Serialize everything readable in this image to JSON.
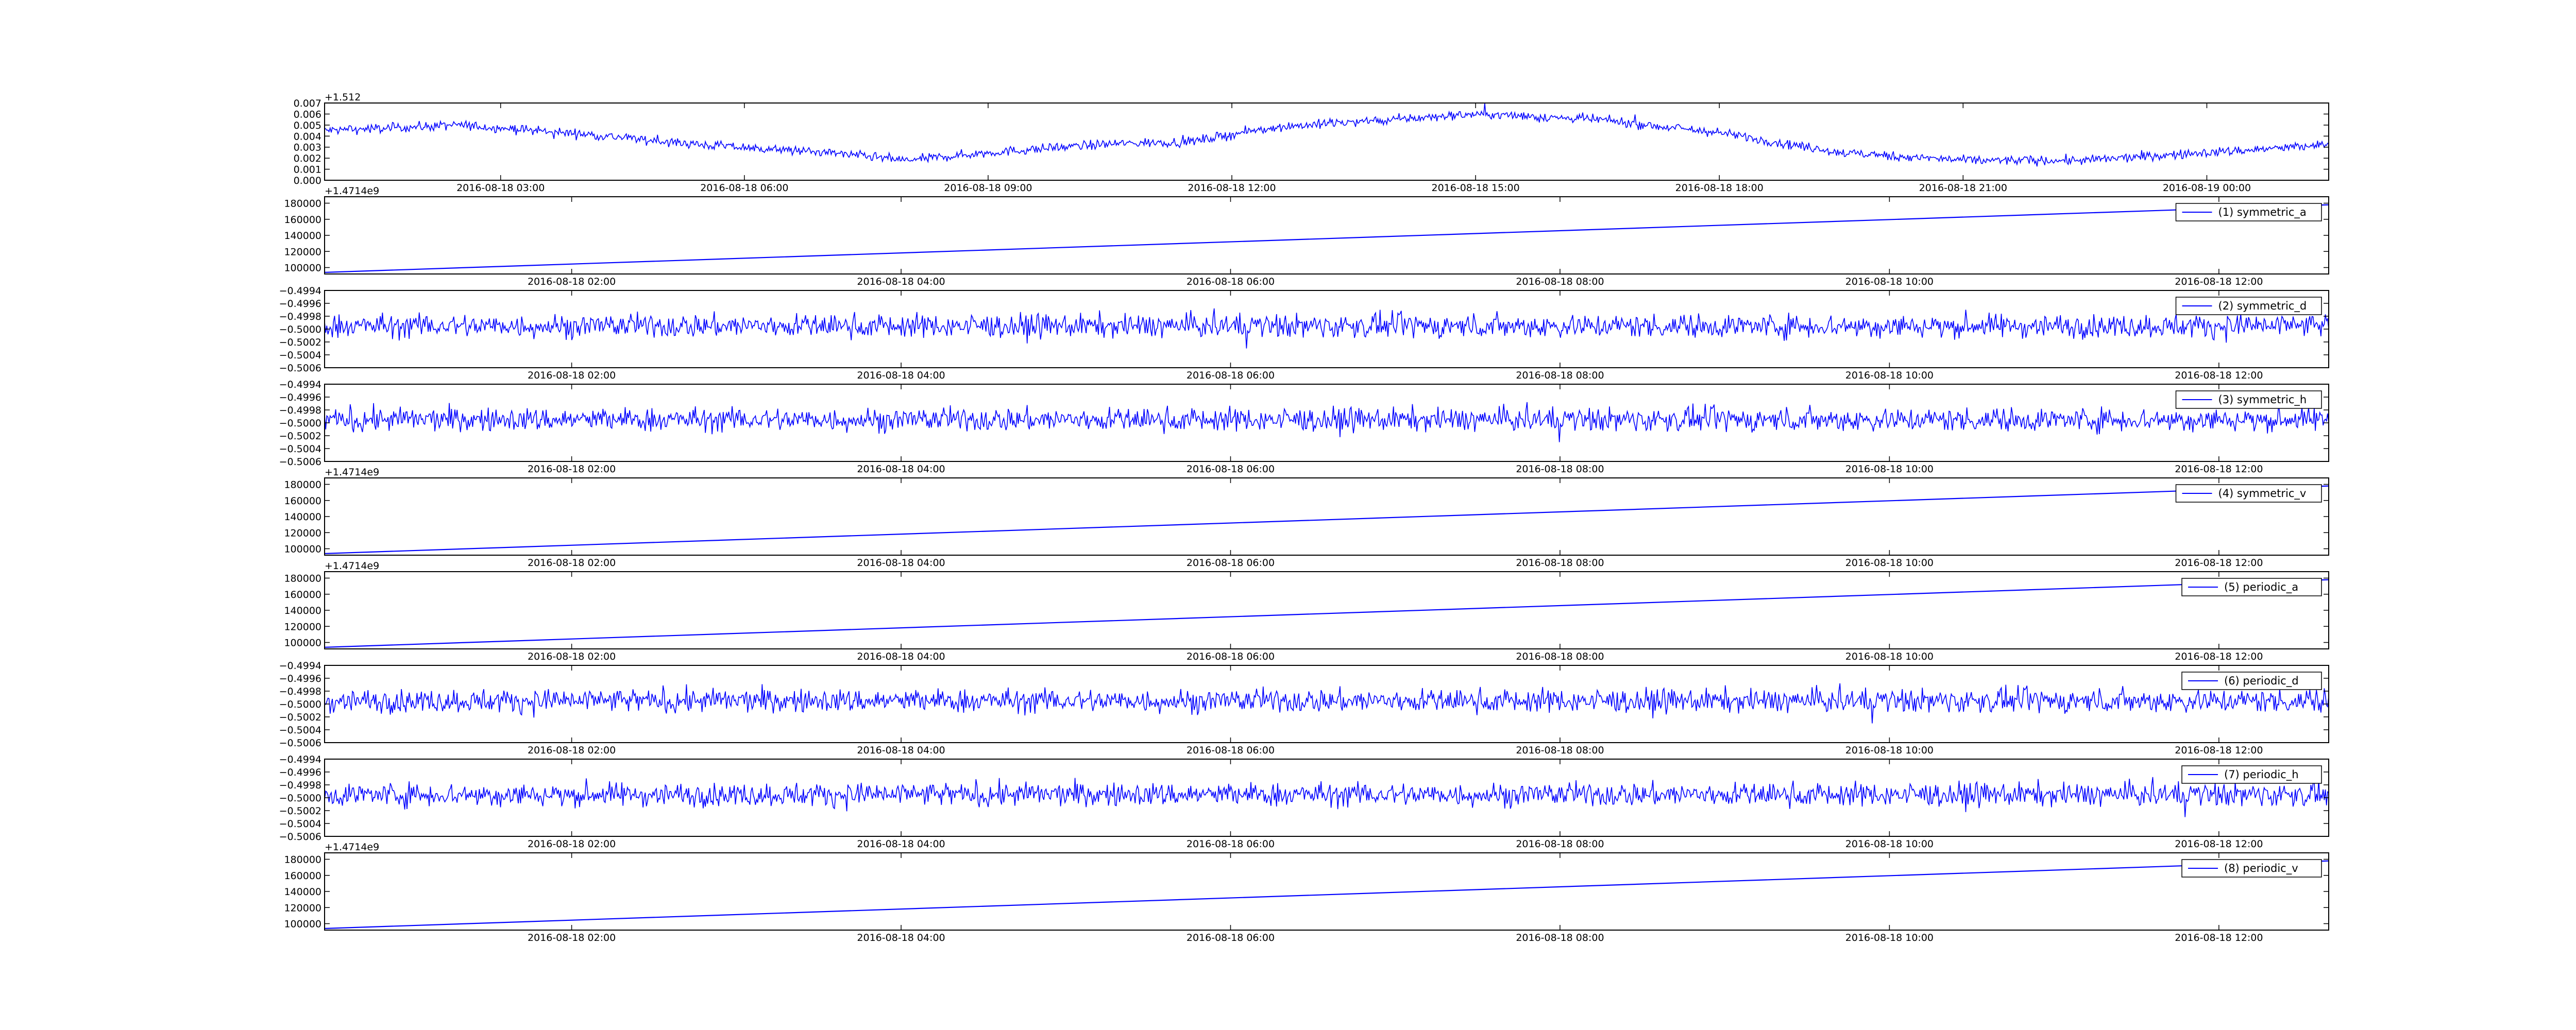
{
  "chart_data": [
    {
      "type": "line",
      "title": "",
      "xlabel": "",
      "ylabel": "",
      "offset_text": "+1.512",
      "x_range": [
        "2016-08-18 00:50",
        "2016-08-19 01:30"
      ],
      "x_ticks": [
        "2016-08-18 03:00",
        "2016-08-18 06:00",
        "2016-08-18 09:00",
        "2016-08-18 12:00",
        "2016-08-18 15:00",
        "2016-08-18 18:00",
        "2016-08-18 21:00",
        "2016-08-19 00:00"
      ],
      "ylim": [
        0.0,
        0.007
      ],
      "y_ticks": [
        "0.000",
        "0.001",
        "0.002",
        "0.003",
        "0.004",
        "0.005",
        "0.006",
        "0.007"
      ],
      "series": [
        {
          "color": "#0000ff",
          "noise": 0.00042,
          "x": [
            "2016-08-18 00:50",
            "2016-08-18 02:30",
            "2016-08-18 04:00",
            "2016-08-18 05:30",
            "2016-08-18 07:00",
            "2016-08-18 08:00",
            "2016-08-18 09:00",
            "2016-08-18 10:30",
            "2016-08-18 11:30",
            "2016-08-18 12:30",
            "2016-08-18 14:00",
            "2016-08-18 15:00",
            "2016-08-18 16:30",
            "2016-08-18 18:00",
            "2016-08-18 19:30",
            "2016-08-18 21:00",
            "2016-08-18 22:30",
            "2016-08-19 00:00",
            "2016-08-19 01:30"
          ],
          "values": [
            0.0045,
            0.005,
            0.0042,
            0.0032,
            0.0025,
            0.0018,
            0.0025,
            0.0033,
            0.0035,
            0.0048,
            0.0055,
            0.006,
            0.0055,
            0.0043,
            0.0025,
            0.0018,
            0.0018,
            0.0025,
            0.0032
          ]
        }
      ]
    },
    {
      "type": "line",
      "title": "",
      "xlabel": "",
      "ylabel": "",
      "offset_text": "+1.4714e9",
      "x_range": [
        "2016-08-18 00:30",
        "2016-08-18 12:40"
      ],
      "x_ticks": [
        "2016-08-18 02:00",
        "2016-08-18 04:00",
        "2016-08-18 06:00",
        "2016-08-18 08:00",
        "2016-08-18 10:00",
        "2016-08-18 12:00"
      ],
      "ylim": [
        92000,
        188000
      ],
      "y_ticks": [
        "100000",
        "120000",
        "140000",
        "160000",
        "180000"
      ],
      "legend": "top-right",
      "series": [
        {
          "name": "(1) symmetric_a",
          "color": "#0000ff",
          "x": [
            "2016-08-18 00:30",
            "2016-08-18 12:40"
          ],
          "values": [
            94000,
            178000
          ]
        }
      ]
    },
    {
      "type": "line",
      "title": "",
      "xlabel": "",
      "ylabel": "",
      "x_range": [
        "2016-08-18 00:30",
        "2016-08-18 12:40"
      ],
      "x_ticks": [
        "2016-08-18 02:00",
        "2016-08-18 04:00",
        "2016-08-18 06:00",
        "2016-08-18 08:00",
        "2016-08-18 10:00",
        "2016-08-18 12:00"
      ],
      "ylim": [
        -0.5006,
        -0.4994
      ],
      "y_ticks": [
        "−0.4994",
        "−0.4996",
        "−0.4998",
        "−0.5000",
        "−0.5002",
        "−0.5004",
        "−0.5006"
      ],
      "legend": "top-right",
      "series": [
        {
          "name": "(2) symmetric_d",
          "color": "#0000ff",
          "noise": 0.00018,
          "x": [
            "2016-08-18 00:30",
            "2016-08-18 12:40"
          ],
          "values": [
            -0.49995,
            -0.49995
          ]
        }
      ]
    },
    {
      "type": "line",
      "title": "",
      "xlabel": "",
      "ylabel": "",
      "x_range": [
        "2016-08-18 00:30",
        "2016-08-18 12:40"
      ],
      "x_ticks": [
        "2016-08-18 02:00",
        "2016-08-18 04:00",
        "2016-08-18 06:00",
        "2016-08-18 08:00",
        "2016-08-18 10:00",
        "2016-08-18 12:00"
      ],
      "ylim": [
        -0.5006,
        -0.4994
      ],
      "y_ticks": [
        "−0.4994",
        "−0.4996",
        "−0.4998",
        "−0.5000",
        "−0.5002",
        "−0.5004",
        "−0.5006"
      ],
      "legend": "top-right",
      "series": [
        {
          "name": "(3) symmetric_h",
          "color": "#0000ff",
          "noise": 0.00018,
          "x": [
            "2016-08-18 00:30",
            "2016-08-18 12:40"
          ],
          "values": [
            -0.49995,
            -0.49995
          ]
        }
      ]
    },
    {
      "type": "line",
      "title": "",
      "xlabel": "",
      "ylabel": "",
      "offset_text": "+1.4714e9",
      "x_range": [
        "2016-08-18 00:30",
        "2016-08-18 12:40"
      ],
      "x_ticks": [
        "2016-08-18 02:00",
        "2016-08-18 04:00",
        "2016-08-18 06:00",
        "2016-08-18 08:00",
        "2016-08-18 10:00",
        "2016-08-18 12:00"
      ],
      "ylim": [
        92000,
        188000
      ],
      "y_ticks": [
        "100000",
        "120000",
        "140000",
        "160000",
        "180000"
      ],
      "legend": "top-right",
      "series": [
        {
          "name": "(4) symmetric_v",
          "color": "#0000ff",
          "x": [
            "2016-08-18 00:30",
            "2016-08-18 12:40"
          ],
          "values": [
            94000,
            178000
          ]
        }
      ]
    },
    {
      "type": "line",
      "title": "",
      "xlabel": "",
      "ylabel": "",
      "offset_text": "+1.4714e9",
      "x_range": [
        "2016-08-18 00:30",
        "2016-08-18 12:40"
      ],
      "x_ticks": [
        "2016-08-18 02:00",
        "2016-08-18 04:00",
        "2016-08-18 06:00",
        "2016-08-18 08:00",
        "2016-08-18 10:00",
        "2016-08-18 12:00"
      ],
      "ylim": [
        92000,
        188000
      ],
      "y_ticks": [
        "100000",
        "120000",
        "140000",
        "160000",
        "180000"
      ],
      "legend": "top-right",
      "series": [
        {
          "name": "(5) periodic_a",
          "color": "#0000ff",
          "x": [
            "2016-08-18 00:30",
            "2016-08-18 12:40"
          ],
          "values": [
            94000,
            178000
          ]
        }
      ]
    },
    {
      "type": "line",
      "title": "",
      "xlabel": "",
      "ylabel": "",
      "x_range": [
        "2016-08-18 00:30",
        "2016-08-18 12:40"
      ],
      "x_ticks": [
        "2016-08-18 02:00",
        "2016-08-18 04:00",
        "2016-08-18 06:00",
        "2016-08-18 08:00",
        "2016-08-18 10:00",
        "2016-08-18 12:00"
      ],
      "ylim": [
        -0.5006,
        -0.4994
      ],
      "y_ticks": [
        "−0.4994",
        "−0.4996",
        "−0.4998",
        "−0.5000",
        "−0.5002",
        "−0.5004",
        "−0.5006"
      ],
      "legend": "top-right",
      "series": [
        {
          "name": "(6) periodic_d",
          "color": "#0000ff",
          "noise": 0.00018,
          "x": [
            "2016-08-18 00:30",
            "2016-08-18 12:40"
          ],
          "values": [
            -0.49995,
            -0.49995
          ]
        }
      ]
    },
    {
      "type": "line",
      "title": "",
      "xlabel": "",
      "ylabel": "",
      "x_range": [
        "2016-08-18 00:30",
        "2016-08-18 12:40"
      ],
      "x_ticks": [
        "2016-08-18 02:00",
        "2016-08-18 04:00",
        "2016-08-18 06:00",
        "2016-08-18 08:00",
        "2016-08-18 10:00",
        "2016-08-18 12:00"
      ],
      "ylim": [
        -0.5006,
        -0.4994
      ],
      "y_ticks": [
        "−0.4994",
        "−0.4996",
        "−0.4998",
        "−0.5000",
        "−0.5002",
        "−0.5004",
        "−0.5006"
      ],
      "legend": "top-right",
      "series": [
        {
          "name": "(7) periodic_h",
          "color": "#0000ff",
          "noise": 0.00018,
          "x": [
            "2016-08-18 00:30",
            "2016-08-18 12:40"
          ],
          "values": [
            -0.49995,
            -0.49995
          ]
        }
      ]
    },
    {
      "type": "line",
      "title": "",
      "xlabel": "",
      "ylabel": "",
      "offset_text": "+1.4714e9",
      "x_range": [
        "2016-08-18 00:30",
        "2016-08-18 12:40"
      ],
      "x_ticks": [
        "2016-08-18 02:00",
        "2016-08-18 04:00",
        "2016-08-18 06:00",
        "2016-08-18 08:00",
        "2016-08-18 10:00",
        "2016-08-18 12:00"
      ],
      "ylim": [
        92000,
        188000
      ],
      "y_ticks": [
        "100000",
        "120000",
        "140000",
        "160000",
        "180000"
      ],
      "legend": "top-right",
      "series": [
        {
          "name": "(8) periodic_v",
          "color": "#0000ff",
          "x": [
            "2016-08-18 00:30",
            "2016-08-18 12:40"
          ],
          "values": [
            94000,
            178000
          ]
        }
      ]
    }
  ]
}
